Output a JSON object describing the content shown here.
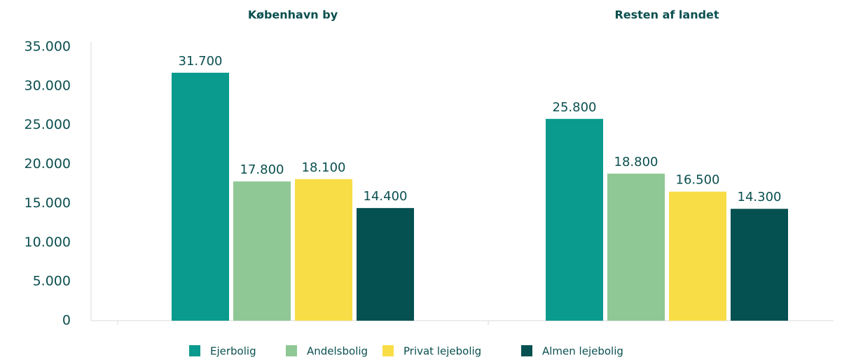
{
  "chart_data": {
    "type": "bar",
    "categories": [
      "København by",
      "Resten af landet"
    ],
    "series": [
      {
        "name": "Ejerbolig",
        "color": "#0a9a8e",
        "values": [
          31700,
          25800
        ],
        "value_labels": [
          "31.700",
          "25.800"
        ]
      },
      {
        "name": "Andelsbolig",
        "color": "#8fc895",
        "values": [
          17800,
          18800
        ],
        "value_labels": [
          "17.800",
          "18.800"
        ]
      },
      {
        "name": "Privat lejebolig",
        "color": "#f9dd47",
        "values": [
          18100,
          16500
        ],
        "value_labels": [
          "18.100",
          "16.500"
        ]
      },
      {
        "name": "Almen lejebolig",
        "color": "#055050",
        "values": [
          14400,
          14300
        ],
        "value_labels": [
          "14.400",
          "14.300"
        ]
      }
    ],
    "ylim": [
      0,
      35000
    ],
    "yticks": [
      0,
      {
        "value": 5000,
        "label": "5.000"
      },
      {
        "value": 10000,
        "label": "10.000"
      },
      {
        "value": 15000,
        "label": "15.000"
      },
      {
        "value": 20000,
        "label": "20.000"
      },
      {
        "value": 25000,
        "label": "25.000"
      },
      {
        "value": 30000,
        "label": "30.000"
      },
      {
        "value": 35000,
        "label": "35.000"
      }
    ],
    "grid": false
  }
}
